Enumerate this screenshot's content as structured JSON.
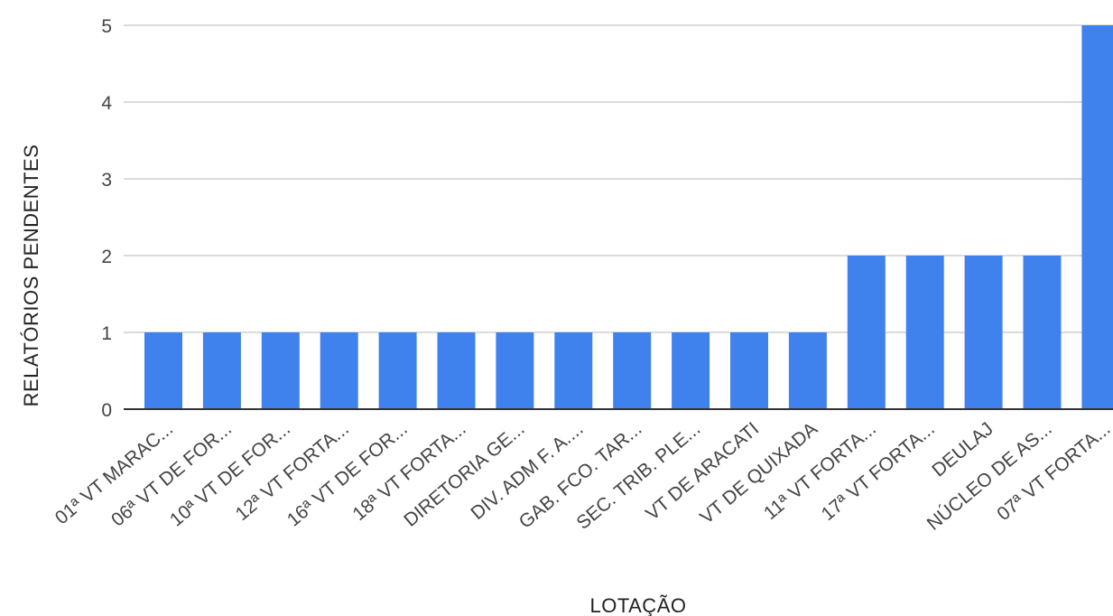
{
  "chart_data": {
    "type": "bar",
    "xlabel": "LOTAÇÃO",
    "ylabel": "RELATÓRIOS PENDENTES",
    "ylim": [
      0,
      5
    ],
    "yticks": [
      0,
      1,
      2,
      3,
      4,
      5
    ],
    "grid": true,
    "legend": "none",
    "bar_color": "#3F82EE",
    "categories": [
      "01ª VT MARAC...",
      "06ª VT DE FOR...",
      "10ª VT DE FOR...",
      "12ª VT FORTA...",
      "16ª VT DE FOR...",
      "18ª VT FORTA...",
      "DIRETORIA GE...",
      "DIV. ADM F. A....",
      "GAB. FCO. TAR...",
      "SEC. TRIB. PLE...",
      "VT DE ARACATI",
      "VT DE QUIXADA",
      "11ª VT FORTA...",
      "17ª VT FORTA...",
      "DEULAJ",
      "NÚCLEO DE AS...",
      "07ª VT FORTA..."
    ],
    "values": [
      1,
      1,
      1,
      1,
      1,
      1,
      1,
      1,
      1,
      1,
      1,
      1,
      2,
      2,
      2,
      2,
      5
    ]
  }
}
